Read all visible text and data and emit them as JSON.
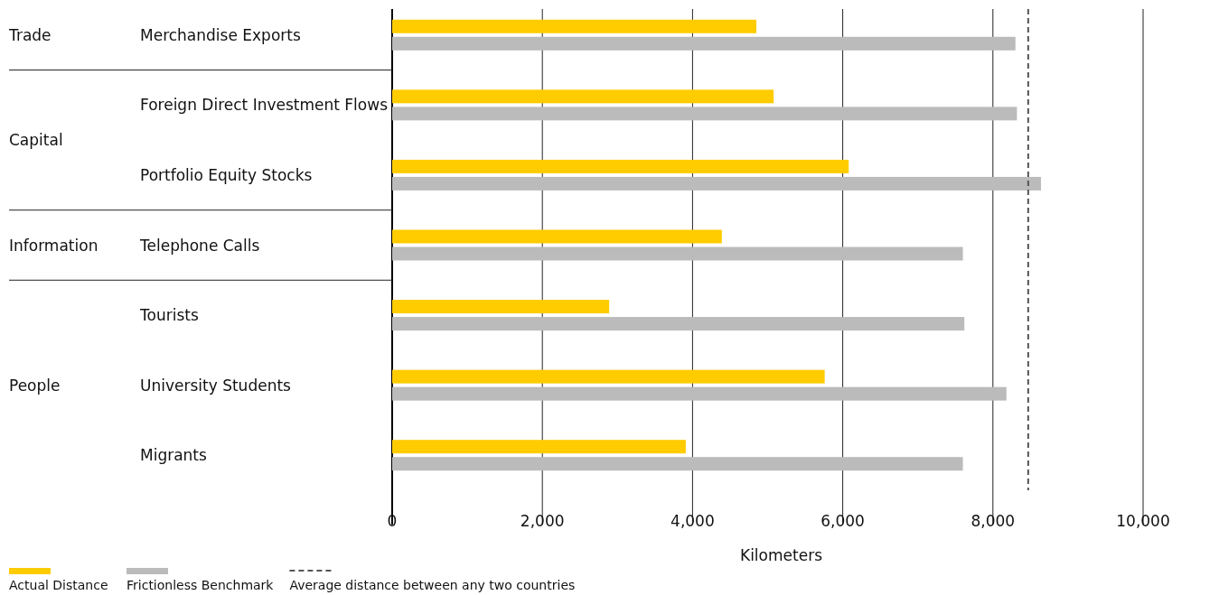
{
  "chart_data": {
    "type": "bar",
    "orientation": "horizontal",
    "categories": [
      "Merchandise Exports",
      "Foreign Direct Investment Flows",
      "Portfolio Equity Stocks",
      "Telephone Calls",
      "Tourists",
      "University Students",
      "Migrants"
    ],
    "series": [
      {
        "name": "Actual Distance",
        "color": "#ffcc00",
        "values": [
          4850,
          5080,
          6080,
          4390,
          2890,
          5760,
          3910
        ]
      },
      {
        "name": "Frictionless Benchmark",
        "color": "#bbbbbb",
        "values": [
          8300,
          8320,
          8640,
          7600,
          7620,
          8180,
          7600
        ]
      }
    ],
    "xlim": [
      0,
      10000
    ],
    "xticks": [
      0,
      {
        "value": 2000,
        "label": "2,000"
      },
      {
        "value": 4000,
        "label": "4,000"
      },
      {
        "value": 6000,
        "label": "6,000"
      },
      {
        "value": 8000,
        "label": "8,000"
      },
      {
        "value": 10000,
        "label": "10,000"
      }
    ],
    "xlabel": "Kilometers",
    "grid": "x",
    "legend": "bottom",
    "ref_lines": [
      {
        "axis": "x",
        "value": 8470,
        "label": "Average distance between any two countries",
        "color": "#555555",
        "line_style": "dashed"
      }
    ],
    "annotations": [
      "Trade",
      "Capital",
      "Information",
      "People"
    ]
  }
}
